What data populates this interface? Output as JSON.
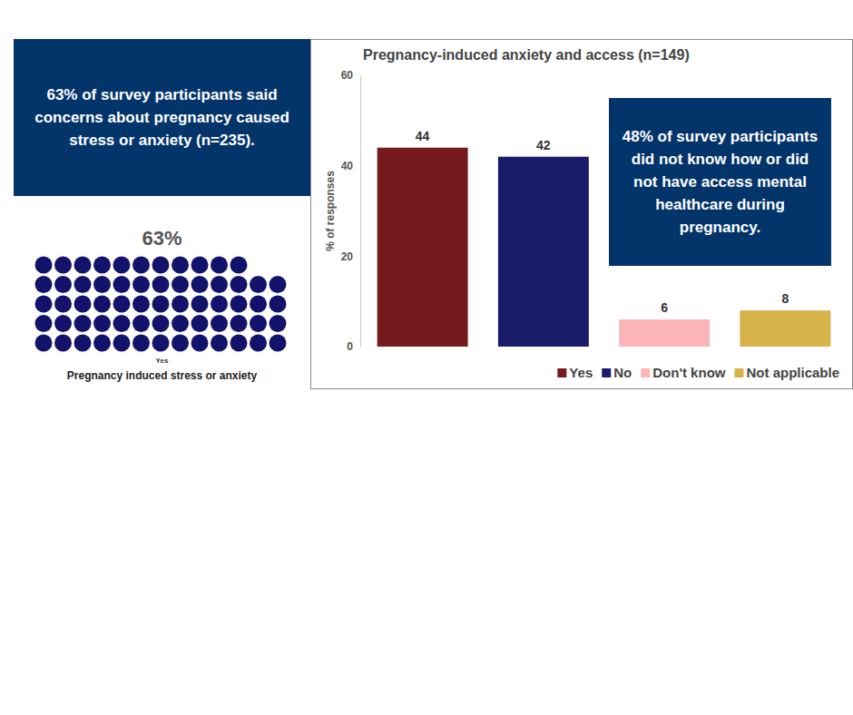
{
  "chart_data": [
    {
      "type": "waffle",
      "annotation": "63% of survey participants said concerns about pregnancy caused stress or anxiety (n=235).",
      "xlabel": "Pregnancy induced stress or anxiety",
      "categories": [
        "Yes"
      ],
      "values": [
        63
      ],
      "value_labels": [
        "63%"
      ],
      "data_labels": true,
      "color": "#13136b"
    },
    {
      "type": "bar",
      "title": "Pregnancy-induced anxiety and access (n=149)",
      "ylabel": "% of responses",
      "annotation": "48% of survey participants did not know how or did not have access mental healthcare during pregnancy.",
      "categories": [
        "Yes",
        "No",
        "Don't know",
        "Not applicable"
      ],
      "values": [
        44,
        42,
        6,
        8
      ],
      "colors": [
        "#751a1d",
        "#1b1b6b",
        "#fbb4b7",
        "#d6b24a"
      ],
      "ylim": [
        0,
        60
      ],
      "yticks": [
        0,
        20,
        40,
        60
      ],
      "data_labels": true,
      "tick_labels": "y",
      "legend": "bottom-right"
    }
  ]
}
